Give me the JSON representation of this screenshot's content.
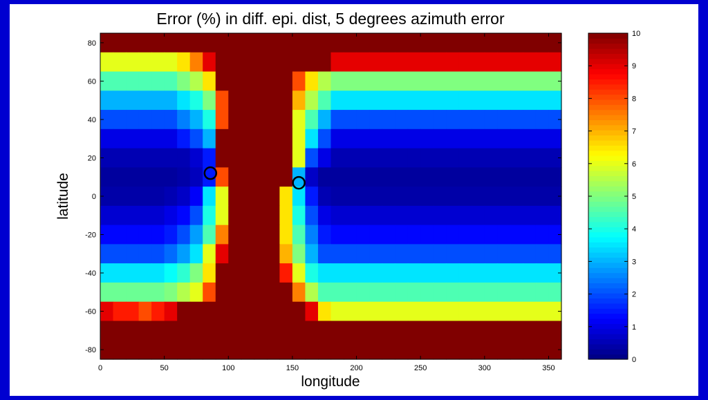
{
  "chart_data": {
    "type": "heatmap",
    "title": "Error (%) in diff. epi. dist, 5 degrees azimuth error",
    "xlabel": "longitude",
    "ylabel": "latitude",
    "xlim": [
      0,
      360
    ],
    "ylim": [
      -85,
      85
    ],
    "xticks": [
      0,
      50,
      100,
      150,
      200,
      250,
      300,
      350
    ],
    "yticks": [
      -80,
      -60,
      -40,
      -20,
      0,
      20,
      40,
      60,
      80
    ],
    "color_range": [
      0,
      10
    ],
    "colorbar_ticks": [
      0,
      1,
      2,
      3,
      4,
      5,
      6,
      7,
      8,
      9,
      10
    ],
    "colormap": "jet",
    "x_centers": [
      5,
      15,
      25,
      35,
      45,
      55,
      65,
      75,
      85,
      95,
      105,
      115,
      125,
      135,
      145,
      155,
      165,
      175,
      185,
      195,
      205,
      215,
      225,
      235,
      245,
      255,
      265,
      275,
      285,
      295,
      305,
      315,
      325,
      335,
      345,
      355
    ],
    "y_centers": [
      80,
      70,
      60,
      50,
      40,
      30,
      20,
      10,
      0,
      -10,
      -20,
      -30,
      -40,
      -50,
      -60,
      -70,
      -80
    ],
    "z": [
      [
        10,
        10,
        10,
        10,
        10,
        10,
        10,
        10,
        10,
        10,
        10,
        10,
        10,
        10,
        10,
        10,
        10,
        10,
        10,
        10,
        10,
        10,
        10,
        10,
        10,
        10,
        10,
        10,
        10,
        10,
        10,
        10,
        10,
        10,
        10,
        10
      ],
      [
        6,
        6,
        6,
        6,
        6,
        6,
        6.5,
        7.5,
        9,
        10,
        10,
        10,
        10,
        10,
        10,
        10,
        10,
        10,
        9,
        9,
        9,
        9,
        9,
        9,
        9,
        9,
        9,
        9,
        9,
        9,
        9,
        9,
        9,
        9,
        9,
        9
      ],
      [
        4.5,
        4.5,
        4.5,
        4.5,
        4.5,
        4.5,
        5,
        5.5,
        6.5,
        10,
        10,
        10,
        10,
        10,
        10,
        8,
        6.5,
        5.5,
        5,
        5,
        5,
        5,
        5,
        5,
        5,
        5,
        5,
        5,
        5,
        5,
        5,
        5,
        5,
        5,
        5,
        5
      ],
      [
        3,
        3,
        3,
        3,
        3,
        3,
        3.5,
        4,
        5,
        8,
        10,
        10,
        10,
        10,
        10,
        7,
        5.5,
        4.5,
        3.5,
        3.5,
        3.5,
        3.5,
        3.5,
        3.5,
        3.5,
        3.5,
        3.5,
        3.5,
        3.5,
        3.5,
        3.5,
        3.5,
        3.5,
        3.5,
        3.5,
        3.5
      ],
      [
        2,
        2,
        2,
        2,
        2,
        2,
        2.5,
        3,
        4,
        8,
        10,
        10,
        10,
        10,
        10,
        6,
        4.5,
        3,
        2,
        2,
        2,
        2,
        2,
        2,
        2,
        2,
        2,
        2,
        2,
        2,
        2,
        2,
        2,
        2,
        2,
        2
      ],
      [
        1,
        1,
        1,
        1,
        1,
        1,
        1.5,
        2,
        3,
        10,
        10,
        10,
        10,
        10,
        10,
        6,
        3.5,
        2,
        1,
        1,
        1,
        1,
        1,
        1,
        1,
        1,
        1,
        1,
        1,
        1,
        1,
        1,
        1,
        1,
        1,
        1
      ],
      [
        0.5,
        0.5,
        0.5,
        0.5,
        0.5,
        0.5,
        0.5,
        0.8,
        1.5,
        10,
        10,
        10,
        10,
        10,
        10,
        6,
        2,
        1,
        0.5,
        0.5,
        0.5,
        0.5,
        0.5,
        0.5,
        0.5,
        0.5,
        0.5,
        0.5,
        0.5,
        0.5,
        0.5,
        0.5,
        0.5,
        0.5,
        0.5,
        0.5
      ],
      [
        0.3,
        0.3,
        0.3,
        0.3,
        0.3,
        0.3,
        0.4,
        0.6,
        1.5,
        8,
        10,
        10,
        10,
        10,
        10,
        3,
        0.7,
        0.3,
        0.3,
        0.3,
        0.3,
        0.3,
        0.3,
        0.3,
        0.3,
        0.3,
        0.3,
        0.3,
        0.3,
        0.3,
        0.3,
        0.3,
        0.3,
        0.3,
        0.3,
        0.3
      ],
      [
        0.4,
        0.4,
        0.4,
        0.4,
        0.4,
        0.5,
        0.7,
        1.2,
        3.5,
        6,
        10,
        10,
        10,
        10,
        6.5,
        3.5,
        1.5,
        0.5,
        0.4,
        0.4,
        0.4,
        0.4,
        0.4,
        0.4,
        0.4,
        0.4,
        0.4,
        0.4,
        0.4,
        0.4,
        0.4,
        0.4,
        0.4,
        0.4,
        0.4,
        0.4
      ],
      [
        0.8,
        0.8,
        0.8,
        0.8,
        0.8,
        1,
        1.3,
        2,
        4,
        6,
        10,
        10,
        10,
        10,
        6.5,
        4,
        2,
        1,
        0.8,
        0.8,
        0.8,
        0.8,
        0.8,
        0.8,
        0.8,
        0.8,
        0.8,
        0.8,
        0.8,
        0.8,
        0.8,
        0.8,
        0.8,
        0.8,
        0.8,
        0.8
      ],
      [
        1.3,
        1.3,
        1.3,
        1.3,
        1.3,
        1.5,
        2,
        2.8,
        4.5,
        7.5,
        10,
        10,
        10,
        10,
        6.5,
        4.5,
        2.5,
        1.5,
        1.3,
        1.3,
        1.3,
        1.3,
        1.3,
        1.3,
        1.3,
        1.3,
        1.3,
        1.3,
        1.3,
        1.3,
        1.3,
        1.3,
        1.3,
        1.3,
        1.3,
        1.3
      ],
      [
        2,
        2,
        2,
        2,
        2,
        2.3,
        2.8,
        3.5,
        6,
        9,
        10,
        10,
        10,
        10,
        7,
        5,
        3,
        2,
        2,
        2,
        2,
        2,
        2,
        2,
        2,
        2,
        2,
        2,
        2,
        2,
        2,
        2,
        2,
        2,
        2,
        2
      ],
      [
        3.5,
        3.5,
        3.5,
        3.5,
        3.5,
        3.8,
        4.2,
        5,
        6.5,
        10,
        10,
        10,
        10,
        10,
        8.5,
        6,
        4,
        3.5,
        3.5,
        3.5,
        3.5,
        3.5,
        3.5,
        3.5,
        3.5,
        3.5,
        3.5,
        3.5,
        3.5,
        3.5,
        3.5,
        3.5,
        3.5,
        3.5,
        3.5,
        3.5
      ],
      [
        4.8,
        4.8,
        4.8,
        4.8,
        4.8,
        5,
        5.5,
        6,
        8,
        10,
        10,
        10,
        10,
        10,
        10,
        7.5,
        5.5,
        4.5,
        4.5,
        4.5,
        4.5,
        4.5,
        4.5,
        4.5,
        4.5,
        4.5,
        4.5,
        4.5,
        4.5,
        4.5,
        4.5,
        4.5,
        4.5,
        4.5,
        4.5,
        4.5
      ],
      [
        9,
        8.5,
        8.5,
        8,
        8.5,
        9,
        10,
        10,
        10,
        10,
        10,
        10,
        10,
        10,
        10,
        10,
        9,
        6.5,
        6,
        6,
        6,
        6,
        6,
        6,
        6,
        6,
        6,
        6,
        6,
        6,
        6,
        6,
        6,
        6,
        6,
        6
      ],
      [
        10,
        10,
        10,
        10,
        10,
        10,
        10,
        10,
        10,
        10,
        10,
        10,
        10,
        10,
        10,
        10,
        10,
        10,
        10,
        10,
        10,
        10,
        10,
        10,
        10,
        10,
        10,
        10,
        10,
        10,
        10,
        10,
        10,
        10,
        10,
        10
      ],
      [
        10,
        10,
        10,
        10,
        10,
        10,
        10,
        10,
        10,
        10,
        10,
        10,
        10,
        10,
        10,
        10,
        10,
        10,
        10,
        10,
        10,
        10,
        10,
        10,
        10,
        10,
        10,
        10,
        10,
        10,
        10,
        10,
        10,
        10,
        10,
        10
      ]
    ],
    "markers": [
      {
        "x": 86,
        "y": 12
      },
      {
        "x": 155,
        "y": 7
      }
    ],
    "grid": false,
    "legend": "none"
  }
}
